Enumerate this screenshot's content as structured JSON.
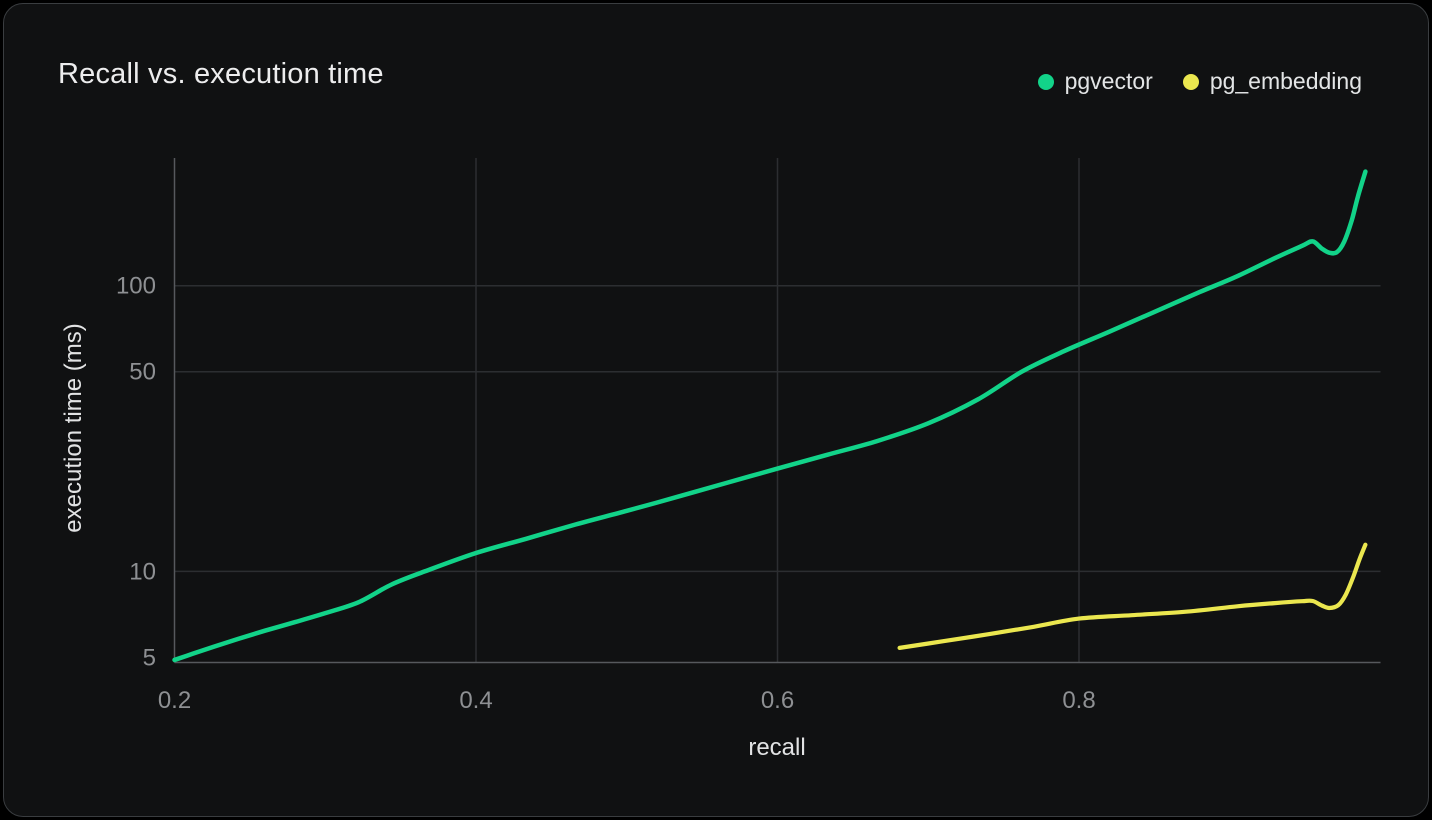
{
  "card": {
    "title": "Recall vs. execution time"
  },
  "colors": {
    "page_background": "#000000",
    "card_background": "#101112",
    "card_border": "#3a3d40",
    "grid": "#2c2e31",
    "axis": "#56595d",
    "tick_label": "#8e9093",
    "axis_title": "#e2e3e4",
    "title_text": "#ededee",
    "pgvector_green": "#12d389",
    "pg_embedding_yellow": "#ebe74f"
  },
  "chart_data": {
    "type": "line",
    "title": "Recall vs. execution time",
    "xlabel": "recall",
    "ylabel": "execution time (ms)",
    "x_scale": "linear",
    "y_scale": "log",
    "xlim": [
      0.2,
      1.0
    ],
    "ylim": [
      4.8,
      280
    ],
    "grid": true,
    "legend_position": "top-right",
    "x_ticks": [
      0.2,
      0.4,
      0.6,
      0.8
    ],
    "x_tick_labels": [
      "0.2",
      "0.4",
      "0.6",
      "0.8"
    ],
    "y_ticks": [
      5,
      10,
      50,
      100
    ],
    "y_tick_labels": [
      "5",
      "10",
      "50",
      "100"
    ],
    "x_gridlines": [
      0.4,
      0.6,
      0.8
    ],
    "y_gridlines": [
      10,
      50,
      100
    ],
    "series": [
      {
        "name": "pgvector",
        "color": "#12d389",
        "stroke_width": 4.5,
        "points": [
          [
            0.2,
            4.9
          ],
          [
            0.212,
            5.15
          ],
          [
            0.226,
            5.45
          ],
          [
            0.242,
            5.8
          ],
          [
            0.26,
            6.2
          ],
          [
            0.28,
            6.65
          ],
          [
            0.3,
            7.15
          ],
          [
            0.322,
            7.8
          ],
          [
            0.344,
            9.0
          ],
          [
            0.366,
            10.0
          ],
          [
            0.4,
            11.6
          ],
          [
            0.433,
            13.0
          ],
          [
            0.466,
            14.6
          ],
          [
            0.5,
            16.3
          ],
          [
            0.533,
            18.2
          ],
          [
            0.566,
            20.4
          ],
          [
            0.6,
            22.9
          ],
          [
            0.633,
            25.6
          ],
          [
            0.666,
            28.6
          ],
          [
            0.7,
            33.0
          ],
          [
            0.733,
            40.0
          ],
          [
            0.762,
            50.0
          ],
          [
            0.79,
            59.0
          ],
          [
            0.82,
            69.0
          ],
          [
            0.85,
            81.0
          ],
          [
            0.88,
            95.0
          ],
          [
            0.905,
            108.0
          ],
          [
            0.93,
            125.0
          ],
          [
            0.948,
            138.0
          ],
          [
            0.955,
            143.0
          ],
          [
            0.961,
            135.0
          ],
          [
            0.966,
            130.5
          ],
          [
            0.971,
            131.0
          ],
          [
            0.976,
            143.0
          ],
          [
            0.981,
            170.0
          ],
          [
            0.985,
            205.0
          ],
          [
            0.99,
            251.0
          ]
        ]
      },
      {
        "name": "pg_embedding",
        "color": "#ebe74f",
        "stroke_width": 4.2,
        "points": [
          [
            0.681,
            5.4
          ],
          [
            0.71,
            5.7
          ],
          [
            0.74,
            6.03
          ],
          [
            0.77,
            6.4
          ],
          [
            0.8,
            6.84
          ],
          [
            0.835,
            7.03
          ],
          [
            0.87,
            7.22
          ],
          [
            0.905,
            7.55
          ],
          [
            0.93,
            7.75
          ],
          [
            0.948,
            7.87
          ],
          [
            0.955,
            7.88
          ],
          [
            0.961,
            7.6
          ],
          [
            0.966,
            7.45
          ],
          [
            0.972,
            7.62
          ],
          [
            0.977,
            8.3
          ],
          [
            0.982,
            9.6
          ],
          [
            0.986,
            11.0
          ],
          [
            0.99,
            12.4
          ]
        ]
      }
    ]
  }
}
